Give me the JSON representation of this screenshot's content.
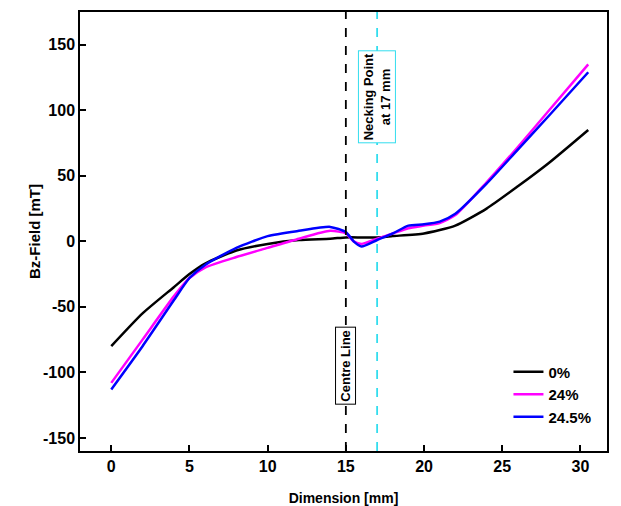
{
  "chart_data": {
    "type": "line",
    "x_label": "Dimension [mm]",
    "y_label": "Bz-Field [mT]",
    "xlim": [
      -2,
      31.7
    ],
    "ylim": [
      -160,
      175
    ],
    "xticks": [
      0,
      5,
      10,
      15,
      20,
      25,
      30
    ],
    "yticks": [
      -150,
      -100,
      -50,
      0,
      50,
      100,
      150
    ],
    "grid": false,
    "legend": "bottom right",
    "series": [
      {
        "name": "0%",
        "color": "#000000",
        "x": [
          0,
          2,
          4,
          5,
          6,
          8,
          10,
          12,
          14,
          15,
          16,
          17,
          18,
          20,
          22,
          24,
          26,
          28,
          30.5
        ],
        "values": [
          -80,
          -55,
          -35,
          -25,
          -17,
          -7,
          -2,
          1,
          2,
          3,
          3,
          3,
          4,
          6,
          12,
          25,
          42,
          60,
          85
        ]
      },
      {
        "name": "24%",
        "color": "#ff00ff",
        "x": [
          0,
          2,
          4,
          5,
          6,
          8,
          10,
          12,
          14,
          15,
          15.5,
          16,
          17,
          18,
          19,
          20,
          21,
          22,
          24,
          26,
          28,
          30.5
        ],
        "values": [
          -108,
          -75,
          -42,
          -28,
          -20,
          -12,
          -5,
          2,
          8,
          6,
          0,
          -2,
          2,
          6,
          10,
          12,
          14,
          20,
          45,
          72,
          100,
          135
        ]
      },
      {
        "name": "24.5%",
        "color": "#0000ff",
        "x": [
          0,
          2,
          4,
          5,
          6,
          8,
          10,
          12,
          14,
          15,
          15.5,
          16,
          17,
          18,
          19,
          20,
          21,
          22,
          24,
          26,
          28,
          30.5
        ],
        "values": [
          -113,
          -80,
          -45,
          -28,
          -18,
          -5,
          4,
          8,
          11,
          7,
          0,
          -4,
          1,
          6,
          12,
          13,
          15,
          21,
          44,
          70,
          96,
          129
        ]
      }
    ],
    "annotations": [
      {
        "lines": [
          "Centre Line"
        ],
        "x": 15,
        "y": -95,
        "color": "#000000",
        "line_style": "dashed"
      },
      {
        "lines": [
          "Necking Point",
          "at 17 mm"
        ],
        "x": 17,
        "y": 110,
        "color": "#33ddee",
        "line_style": "dashed"
      }
    ]
  }
}
